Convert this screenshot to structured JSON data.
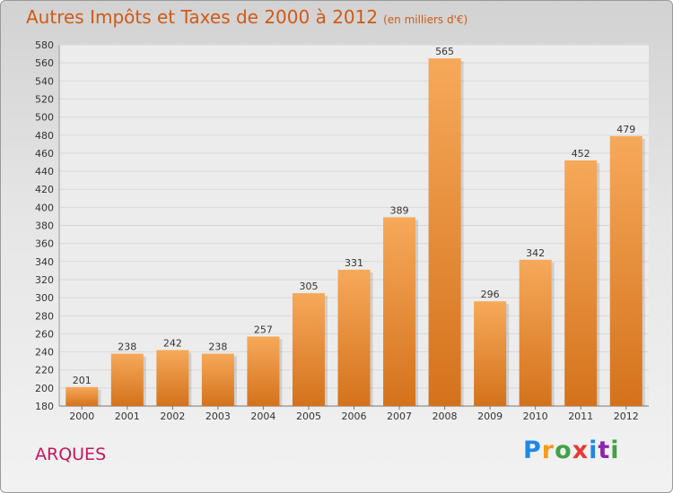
{
  "header": {
    "title": "Autres Impôts et Taxes de 2000 à 2012",
    "unit": "(en milliers d'€)"
  },
  "footer": {
    "city": "ARQUES",
    "logo": "Proxiti"
  },
  "colors": {
    "bar_light": "#f6a95a",
    "bar_dark": "#d4721c",
    "title": "#d05a16",
    "city": "#c2185b",
    "grid": "#d9d9d9"
  },
  "chart_data": {
    "type": "bar",
    "categories": [
      "2000",
      "2001",
      "2002",
      "2003",
      "2004",
      "2005",
      "2006",
      "2007",
      "2008",
      "2009",
      "2010",
      "2011",
      "2012"
    ],
    "values": [
      201,
      238,
      242,
      238,
      257,
      305,
      331,
      389,
      565,
      296,
      342,
      452,
      479
    ],
    "title": "Autres Impôts et Taxes de 2000 à 2012",
    "xlabel": "",
    "ylabel": "",
    "ylim": [
      180,
      580
    ],
    "ytick_step": 20,
    "grid": true
  }
}
